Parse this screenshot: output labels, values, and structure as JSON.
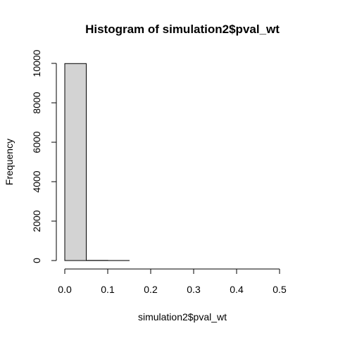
{
  "chart_data": {
    "type": "bar",
    "title": "Histogram of simulation2$pval_wt",
    "xlabel": "simulation2$pval_wt",
    "ylabel": "Frequency",
    "bin_edges": [
      0.0,
      0.05,
      0.1,
      0.15,
      0.2,
      0.25,
      0.3,
      0.35,
      0.4,
      0.45,
      0.5,
      0.55
    ],
    "values": [
      9990,
      8,
      2,
      0,
      0,
      0,
      0,
      0,
      0,
      0,
      0
    ],
    "xlim": [
      0.0,
      0.55
    ],
    "ylim": [
      0,
      10000
    ],
    "x_ticks": [
      0.0,
      0.1,
      0.2,
      0.3,
      0.4,
      0.5
    ],
    "x_tick_labels": [
      "0.0",
      "0.1",
      "0.2",
      "0.3",
      "0.4",
      "0.5"
    ],
    "y_ticks": [
      0,
      2000,
      4000,
      6000,
      8000,
      10000
    ],
    "y_tick_labels": [
      "0",
      "2000",
      "4000",
      "6000",
      "8000",
      "10000"
    ],
    "bar_fill": "#d3d3d3",
    "bar_stroke": "#000000",
    "grid": false,
    "legend": "none"
  }
}
